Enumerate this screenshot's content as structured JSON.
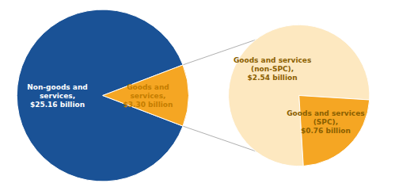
{
  "chart_data": [
    {
      "type": "pie",
      "categories": [
        "Non-goods and\nservices,\n$25.16 billion",
        "Goods and\nservices,\n$3.30 billion"
      ],
      "values": [
        25.16,
        3.3
      ],
      "colors": [
        "#1a5296",
        "#f5a623"
      ]
    },
    {
      "type": "pie",
      "categories": [
        "Goods and services\n(non-SPC),\n$2.54 billion",
        "Goods and services\n(SPC),\n$0.76 billion"
      ],
      "values": [
        2.54,
        0.76
      ],
      "colors": [
        "#fde8c0",
        "#f5a623"
      ]
    }
  ]
}
